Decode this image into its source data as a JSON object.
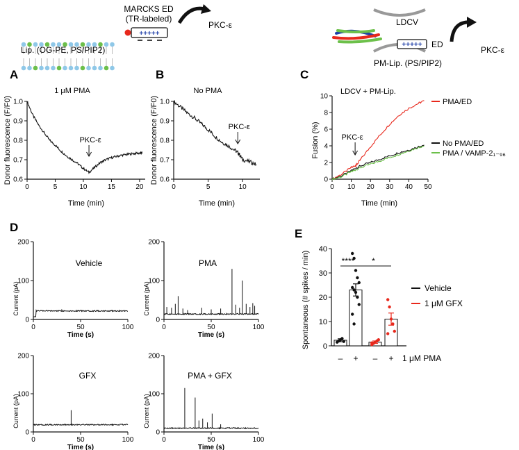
{
  "schematic": {
    "left": {
      "title_line1": "MARCKS ED",
      "title_line2": "(TR-labeled)",
      "box_text": "+++++",
      "lipid_label": "Lip. (OG-PE, PS/PIP2)",
      "pkc_label": "PKC-ε"
    },
    "right": {
      "ldcv_label": "LDCV",
      "box_text": "+++++",
      "ed_label": "ED",
      "pm_label": "PM-Lip. (PS/PIP2)",
      "pkc_label": "PKC-ε"
    }
  },
  "colors": {
    "black": "#111111",
    "red": "#e8281c",
    "green": "#6cc04a",
    "blue": "#1f3fa8",
    "lipid_head": "#8fc8e8",
    "lipid_head_green": "#6cbf4a",
    "gray": "#999999"
  },
  "chart_data": [
    {
      "panel": "A",
      "type": "line",
      "title": "1 μM PMA",
      "xlabel": "Time (min)",
      "ylabel": "Donor fluorescence (F/F0)",
      "xlim": [
        0,
        21
      ],
      "ylim": [
        0.6,
        1.0
      ],
      "xticks": [
        "0",
        "5",
        "10",
        "15",
        "20"
      ],
      "yticks": [
        "0.6",
        "0.7",
        "0.8",
        "0.9",
        "1.0"
      ],
      "annotation": "PKC-ε",
      "arrow_at": 11,
      "x": [
        0,
        1,
        2,
        3,
        4,
        5,
        6,
        7,
        8,
        9,
        10,
        11,
        12,
        13,
        14,
        15,
        16,
        17,
        18,
        19,
        20,
        20.5
      ],
      "y": [
        1.0,
        0.93,
        0.88,
        0.84,
        0.8,
        0.775,
        0.745,
        0.72,
        0.7,
        0.68,
        0.655,
        0.635,
        0.66,
        0.685,
        0.7,
        0.71,
        0.718,
        0.724,
        0.728,
        0.732,
        0.734,
        0.735
      ]
    },
    {
      "panel": "B",
      "type": "line",
      "title": "No PMA",
      "xlabel": "Time (min)",
      "ylabel": "Donor fluorescence (F/F0)",
      "xlim": [
        0,
        12.5
      ],
      "ylim": [
        0.6,
        1.0
      ],
      "xticks": [
        "0",
        "5",
        "10"
      ],
      "yticks": [
        "0.6",
        "0.7",
        "0.8",
        "0.9",
        "1.0"
      ],
      "annotation": "PKC-ε",
      "arrow_at": 9.3,
      "x": [
        0,
        1,
        2,
        3,
        4,
        5,
        6,
        7,
        8,
        9,
        9.5,
        10,
        11,
        12
      ],
      "y": [
        1.0,
        0.97,
        0.94,
        0.915,
        0.885,
        0.855,
        0.82,
        0.79,
        0.77,
        0.745,
        0.73,
        0.7,
        0.69,
        0.675
      ]
    },
    {
      "panel": "C",
      "type": "line",
      "title": "LDCV + PM-Lip.",
      "xlabel": "Time (min)",
      "ylabel": "Fusion (%)",
      "xlim": [
        0,
        50
      ],
      "ylim": [
        0,
        10
      ],
      "xticks": [
        "0",
        "10",
        "20",
        "30",
        "40",
        "50"
      ],
      "yticks": [
        "0",
        "2",
        "4",
        "6",
        "8",
        "10"
      ],
      "annotation": "PKC-ε",
      "arrow_at": 12,
      "series": [
        {
          "name": "PMA/ED",
          "color": "#e8281c",
          "x": [
            0,
            5,
            10,
            12,
            13,
            15,
            20,
            25,
            30,
            35,
            40,
            45,
            48
          ],
          "y": [
            0,
            0.6,
            1.4,
            1.6,
            1.8,
            2.4,
            3.9,
            5.3,
            6.6,
            7.7,
            8.5,
            9.1,
            9.4
          ]
        },
        {
          "name": "No PMA/ED",
          "color": "#111111",
          "x": [
            0,
            5,
            10,
            12,
            15,
            20,
            25,
            30,
            35,
            40,
            45,
            48
          ],
          "y": [
            0,
            0.4,
            1.0,
            1.3,
            1.6,
            2.0,
            2.4,
            2.8,
            3.2,
            3.5,
            3.9,
            4.1
          ]
        },
        {
          "name": "PMA / VAMP-2₁₋₉₆",
          "color": "#6cc04a",
          "x": [
            0,
            5,
            10,
            12,
            15,
            20,
            25,
            30,
            35,
            40,
            45,
            48
          ],
          "y": [
            0,
            0.3,
            0.9,
            1.1,
            1.4,
            1.8,
            2.2,
            2.6,
            3.0,
            3.4,
            3.8,
            4.0
          ]
        }
      ]
    },
    {
      "panel": "D",
      "type": "line",
      "subplots": [
        {
          "title": "Vehicle",
          "baseline": 22,
          "step_from": 3,
          "step_to": 25,
          "spikes": [
            [
              30,
              26
            ],
            [
              65,
              24
            ]
          ]
        },
        {
          "title": "PMA",
          "baseline": 14,
          "step_from": 0,
          "step_to": 14,
          "spikes": [
            [
              3,
              32
            ],
            [
              8,
              30
            ],
            [
              12,
              40
            ],
            [
              15,
              60
            ],
            [
              20,
              28
            ],
            [
              25,
              24
            ],
            [
              40,
              30
            ],
            [
              50,
              26
            ],
            [
              60,
              28
            ],
            [
              72,
              130
            ],
            [
              76,
              38
            ],
            [
              80,
              30
            ],
            [
              83,
              100
            ],
            [
              87,
              40
            ],
            [
              91,
              32
            ],
            [
              94,
              42
            ],
            [
              96,
              35
            ]
          ]
        },
        {
          "title": "GFX",
          "baseline": 19,
          "step_from": 0,
          "step_to": 19,
          "spikes": [
            [
              40,
              57
            ]
          ]
        },
        {
          "title": "PMA + GFX",
          "baseline": 10,
          "step_from": 0,
          "step_to": 12,
          "spikes": [
            [
              22,
              115
            ],
            [
              33,
              90
            ],
            [
              37,
              30
            ],
            [
              41,
              35
            ],
            [
              46,
              25
            ],
            [
              51,
              48
            ],
            [
              60,
              20
            ]
          ]
        }
      ],
      "xlabel": "Time (s)",
      "ylabel": "Current (pA)",
      "xlim": [
        0,
        100
      ],
      "ylim": [
        0,
        200
      ],
      "xticks": [
        "0",
        "50",
        "100"
      ],
      "yticks": [
        "0",
        "100",
        "200"
      ]
    },
    {
      "panel": "E",
      "type": "bar",
      "categories": [
        "–",
        "+",
        "–",
        "+"
      ],
      "condition_label": "1 μM PMA",
      "groups": [
        "Vehicle",
        "Vehicle",
        "1 μM GFX",
        "1 μM GFX"
      ],
      "values": [
        2.3,
        23,
        1.5,
        11
      ],
      "errors": [
        0.6,
        2.5,
        0.5,
        2.5
      ],
      "colors": [
        "#111111",
        "#111111",
        "#e8281c",
        "#e8281c"
      ],
      "points": [
        [
          1.5,
          2.0,
          2.5,
          3.0,
          1.8
        ],
        [
          38,
          36,
          31,
          28,
          26,
          24,
          23,
          22,
          20,
          17,
          13,
          9
        ],
        [
          0.5,
          1.0,
          1.5,
          2.0,
          2.5,
          1.2
        ],
        [
          19,
          16,
          11,
          9,
          6,
          5
        ]
      ],
      "ylabel": "Spontaneous (# spikes / min)",
      "ylim": [
        0,
        40
      ],
      "yticks": [
        "0",
        "10",
        "20",
        "30",
        "40"
      ],
      "significance": [
        {
          "from": 0,
          "to": 1,
          "label": "****"
        },
        {
          "from": 1,
          "to": 3,
          "label": "*"
        }
      ],
      "legend": [
        {
          "label": "Vehicle",
          "color": "#111111"
        },
        {
          "label": "1 μM GFX",
          "color": "#e8281c"
        }
      ]
    }
  ],
  "panel_labels": [
    "A",
    "B",
    "C",
    "D",
    "E"
  ]
}
